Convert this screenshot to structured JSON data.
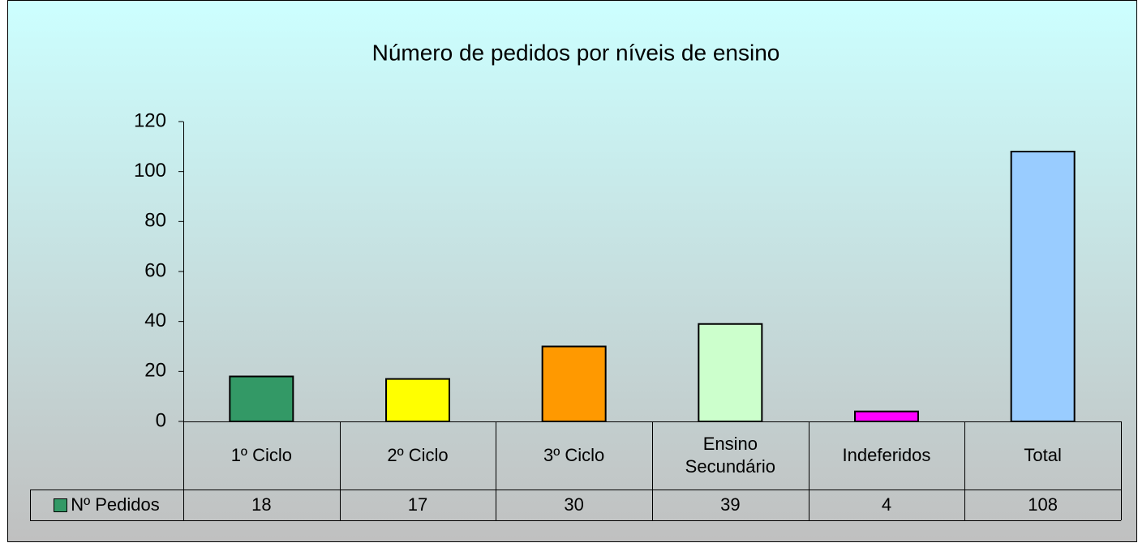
{
  "chart_data": {
    "type": "bar",
    "title": "Número de pedidos por níveis de ensino",
    "categories": [
      "1º Ciclo",
      "2º Ciclo",
      "3º Ciclo",
      "Ensino Secundário",
      "Indeferidos",
      "Total"
    ],
    "series": [
      {
        "name": "Nº Pedidos",
        "color": "#339966",
        "values": [
          18,
          17,
          30,
          39,
          4,
          108
        ]
      }
    ],
    "bar_colors": [
      "#339966",
      "#ffff00",
      "#ff9900",
      "#ccffcc",
      "#ff00ff",
      "#99ccff"
    ],
    "ylim": [
      0,
      120
    ],
    "yticks": [
      0,
      20,
      40,
      60,
      80,
      100,
      120
    ],
    "grid": false
  }
}
